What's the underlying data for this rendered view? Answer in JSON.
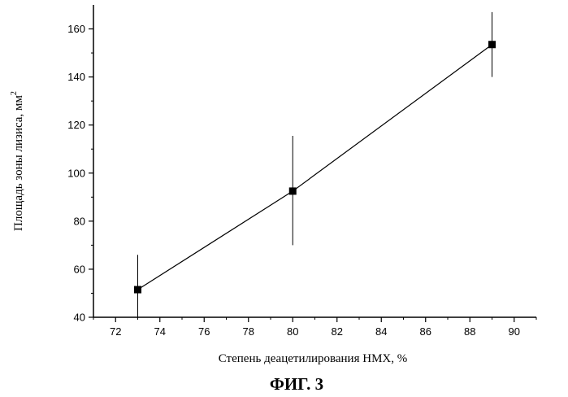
{
  "chart_data": {
    "type": "line",
    "title": "",
    "xlabel": "Степень деацетилирования НМХ, %",
    "ylabel_main": "Площадь зоны лизиса, мм",
    "ylabel_sup": "2",
    "caption": "ФИГ. 3",
    "xlim": [
      71,
      91
    ],
    "ylim": [
      40,
      170
    ],
    "x_ticks": [
      72,
      74,
      76,
      78,
      80,
      82,
      84,
      86,
      88,
      90
    ],
    "y_ticks": [
      40,
      60,
      80,
      100,
      120,
      140,
      160
    ],
    "grid": false,
    "legend": "none",
    "series": [
      {
        "x": [
          73,
          80,
          89
        ],
        "y": [
          51.5,
          92.5,
          153.5
        ],
        "error_low": [
          39,
          70,
          140
        ],
        "error_high": [
          66,
          115.5,
          167
        ],
        "marker": "square",
        "color": "#000000"
      }
    ]
  }
}
